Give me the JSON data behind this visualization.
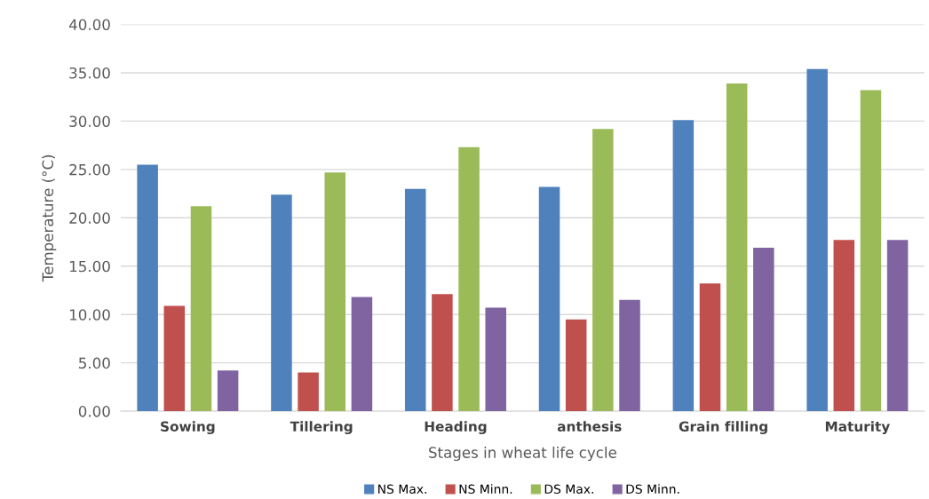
{
  "chart_data": {
    "type": "bar",
    "xlabel": "Stages in wheat life cycle",
    "ylabel": "Temperature (°C)",
    "categories": [
      "Sowing",
      "Tillering",
      "Heading",
      "anthesis",
      "Grain filling",
      "Maturity"
    ],
    "series": [
      {
        "name": "NS Max.",
        "color": "#4f81bd",
        "values": [
          25.5,
          22.4,
          23.0,
          23.2,
          30.1,
          35.4
        ]
      },
      {
        "name": "NS Minn.",
        "color": "#c0504d",
        "values": [
          10.9,
          4.0,
          12.1,
          9.5,
          13.2,
          17.7
        ]
      },
      {
        "name": "DS Max.",
        "color": "#9bbb59",
        "values": [
          21.2,
          24.7,
          27.3,
          29.2,
          33.9,
          33.2
        ]
      },
      {
        "name": "DS Minn.",
        "color": "#8064a2",
        "values": [
          4.2,
          11.8,
          10.7,
          11.5,
          16.9,
          17.7
        ]
      }
    ],
    "ylim": [
      0,
      40
    ],
    "yticks": [
      {
        "value": 0,
        "label": "0.00"
      },
      {
        "value": 5,
        "label": "5.00"
      },
      {
        "value": 10,
        "label": "10.00"
      },
      {
        "value": 15,
        "label": "15.00"
      },
      {
        "value": 20,
        "label": "20.00"
      },
      {
        "value": 25,
        "label": "25.00"
      },
      {
        "value": 30,
        "label": "30.00"
      },
      {
        "value": 35,
        "label": "35.00"
      },
      {
        "value": 40,
        "label": "40.00"
      }
    ],
    "grid": "y",
    "legend": "bottom"
  }
}
